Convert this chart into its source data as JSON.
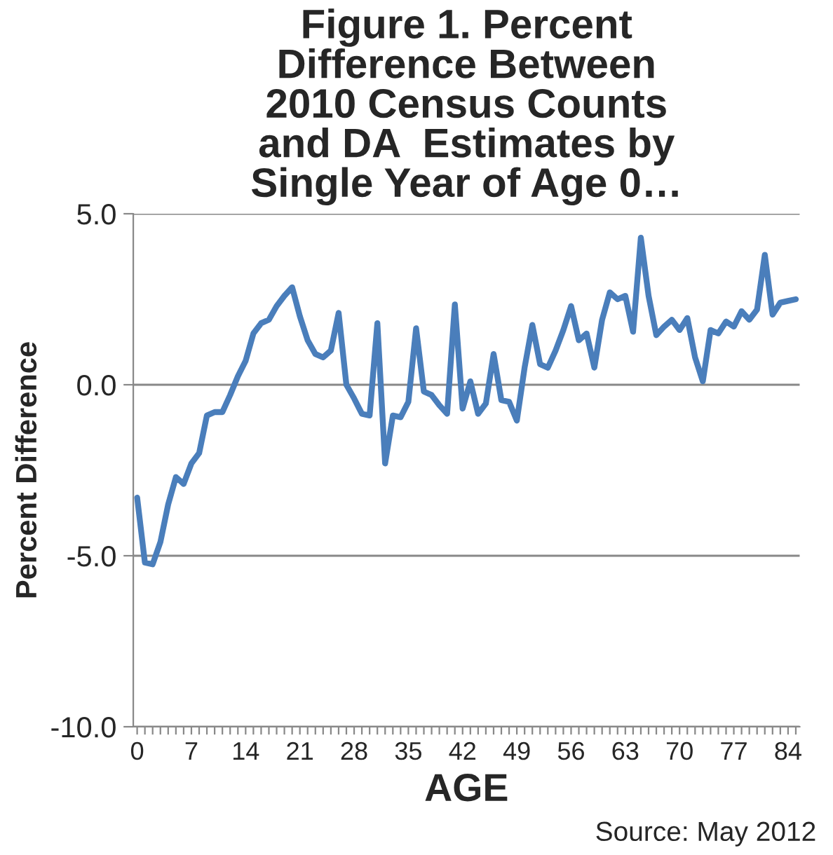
{
  "chart_data": {
    "type": "line",
    "title": "Figure 1. Percent\nDifference Between\n2010 Census Counts\nand DA  Estimates by\nSingle Year of Age 0…",
    "xlabel": "AGE",
    "ylabel": "Percent Difference",
    "annotations": [
      "Source: May 2012"
    ],
    "categories": [
      "0",
      null,
      null,
      null,
      null,
      null,
      null,
      "7",
      null,
      null,
      null,
      null,
      null,
      null,
      "14",
      null,
      null,
      null,
      null,
      null,
      null,
      "21",
      null,
      null,
      null,
      null,
      null,
      null,
      "28",
      null,
      null,
      null,
      null,
      null,
      null,
      "35",
      null,
      null,
      null,
      null,
      null,
      null,
      "42",
      null,
      null,
      null,
      null,
      null,
      null,
      "49",
      null,
      null,
      null,
      null,
      null,
      null,
      "56",
      null,
      null,
      null,
      null,
      null,
      null,
      "63",
      null,
      null,
      null,
      null,
      null,
      null,
      "70",
      null,
      null,
      null,
      null,
      null,
      null,
      "77",
      null,
      null,
      null,
      null,
      null,
      null,
      "84",
      null
    ],
    "series": [
      {
        "color": "#4a7ebb",
        "values": [
          -3.3,
          -5.2,
          -5.25,
          -4.6,
          -3.5,
          -2.7,
          -2.9,
          -2.3,
          -2.0,
          -0.9,
          -0.8,
          -0.8,
          -0.3,
          0.25,
          0.7,
          1.5,
          1.8,
          1.9,
          2.3,
          2.6,
          2.85,
          2.0,
          1.3,
          0.9,
          0.8,
          1.0,
          2.1,
          0.0,
          -0.4,
          -0.85,
          -0.9,
          1.8,
          -2.3,
          -0.9,
          -0.95,
          -0.5,
          1.65,
          -0.2,
          -0.3,
          -0.6,
          -0.85,
          2.35,
          -0.7,
          0.1,
          -0.85,
          -0.55,
          0.9,
          -0.45,
          -0.5,
          -1.05,
          0.5,
          1.75,
          0.6,
          0.5,
          1.0,
          1.6,
          2.3,
          1.3,
          1.5,
          0.5,
          1.9,
          2.7,
          2.5,
          2.6,
          1.55,
          4.3,
          2.6,
          1.45,
          1.7,
          1.9,
          1.6,
          1.95,
          0.8,
          0.1,
          1.6,
          1.5,
          1.85,
          1.7,
          2.15,
          1.9,
          2.2,
          3.8,
          2.05,
          2.4,
          2.45,
          2.5
        ]
      }
    ],
    "ylim": [
      -10,
      5
    ],
    "yticks": [
      {
        "value": -10,
        "label": "-10.0"
      },
      {
        "value": -5,
        "label": "-5.0"
      },
      {
        "value": 0,
        "label": "0.0"
      },
      {
        "value": 5,
        "label": "5.0"
      }
    ],
    "grid": "y"
  }
}
